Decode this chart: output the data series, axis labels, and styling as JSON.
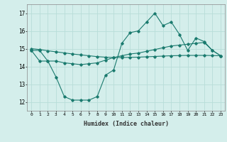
{
  "xlabel": "Humidex (Indice chaleur)",
  "background_color": "#d4eeeb",
  "grid_color": "#b8ddd8",
  "line_color": "#1a7a6e",
  "x": [
    0,
    1,
    2,
    3,
    4,
    5,
    6,
    7,
    8,
    9,
    10,
    11,
    12,
    13,
    14,
    15,
    16,
    17,
    18,
    19,
    20,
    21,
    22,
    23
  ],
  "line1": [
    14.9,
    14.9,
    14.3,
    14.3,
    14.2,
    14.15,
    14.1,
    14.15,
    14.2,
    14.35,
    14.5,
    14.6,
    14.7,
    14.75,
    14.85,
    14.95,
    15.05,
    15.15,
    15.2,
    15.25,
    15.3,
    15.35,
    14.9,
    14.6
  ],
  "line2": [
    14.9,
    14.3,
    14.3,
    13.4,
    12.3,
    12.1,
    12.1,
    12.1,
    12.3,
    13.5,
    13.8,
    15.3,
    15.9,
    16.0,
    16.5,
    17.0,
    16.3,
    16.5,
    15.8,
    14.9,
    15.6,
    15.4,
    14.9,
    14.6
  ],
  "line3": [
    15.0,
    14.95,
    14.88,
    14.82,
    14.76,
    14.7,
    14.65,
    14.6,
    14.55,
    14.52,
    14.5,
    14.5,
    14.51,
    14.52,
    14.54,
    14.56,
    14.58,
    14.6,
    14.61,
    14.62,
    14.62,
    14.62,
    14.61,
    14.6
  ],
  "ylim": [
    11.5,
    17.5
  ],
  "yticks": [
    12,
    13,
    14,
    15,
    16,
    17
  ],
  "xlim": [
    -0.5,
    23.5
  ],
  "xticks": [
    0,
    1,
    2,
    3,
    4,
    5,
    6,
    7,
    8,
    9,
    10,
    11,
    12,
    13,
    14,
    15,
    16,
    17,
    18,
    19,
    20,
    21,
    22,
    23
  ],
  "figsize": [
    3.2,
    2.0
  ],
  "dpi": 100
}
